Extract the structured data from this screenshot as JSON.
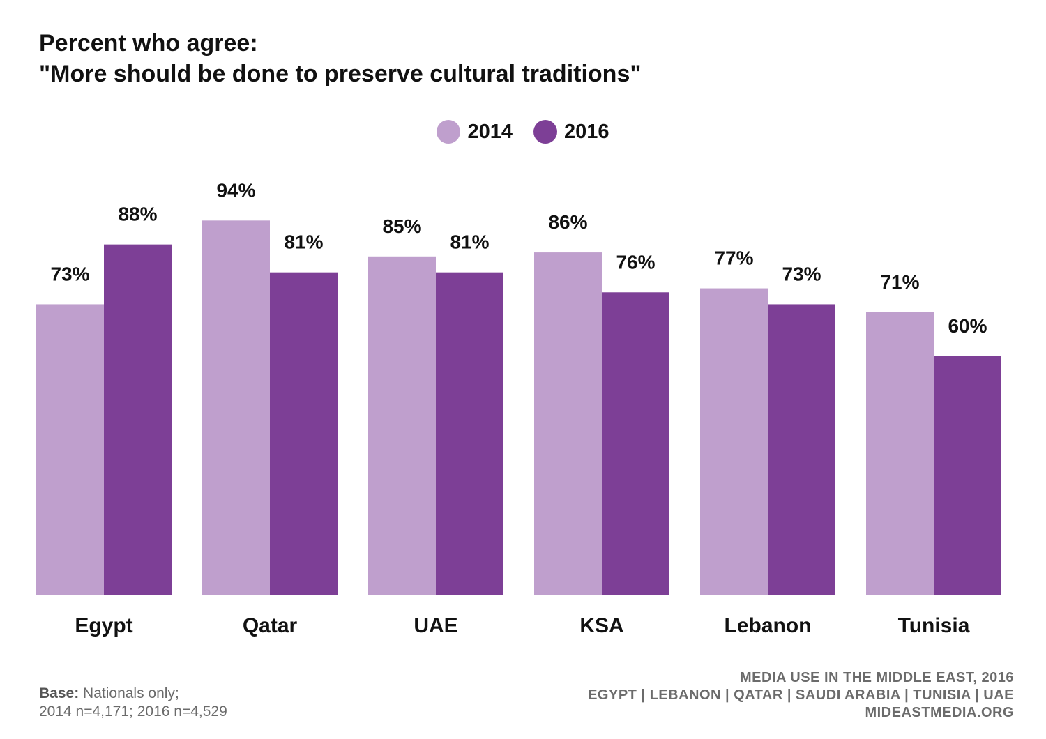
{
  "title": {
    "line1": "Percent who agree:",
    "line2": "\"More should be done to preserve cultural traditions\""
  },
  "legend": [
    {
      "label": "2014",
      "color": "#bf9fcd"
    },
    {
      "label": "2016",
      "color": "#7d3f96"
    }
  ],
  "chart_data": {
    "type": "bar",
    "categories": [
      "Egypt",
      "Qatar",
      "UAE",
      "KSA",
      "Lebanon",
      "Tunisia"
    ],
    "series": [
      {
        "name": "2014",
        "values": [
          73,
          94,
          85,
          86,
          77,
          71
        ],
        "labels": [
          "73%",
          "94%",
          "85%",
          "86%",
          "77%",
          "71%"
        ],
        "color": "#bf9fcd"
      },
      {
        "name": "2016",
        "values": [
          88,
          81,
          81,
          76,
          73,
          60
        ],
        "labels": [
          "88%",
          "81%",
          "81%",
          "76%",
          "73%",
          "60%"
        ],
        "color": "#7d3f96"
      }
    ],
    "ylim": [
      0,
      100
    ],
    "grid": false,
    "legend_position": "top-center"
  },
  "footer": {
    "base_label": "Base:",
    "base_text": "Nationals only;",
    "sample_line": "2014 n=4,171; 2016 n=4,529",
    "source_lines": [
      "MEDIA USE IN THE MIDDLE EAST, 2016",
      "EGYPT | LEBANON | QATAR | SAUDI ARABIA | TUNISIA | UAE",
      "MIDEASTMEDIA.ORG"
    ]
  }
}
